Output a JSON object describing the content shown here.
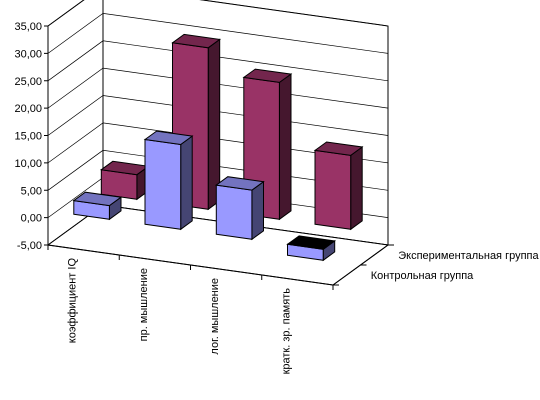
{
  "chart_data": {
    "type": "bar",
    "three_d": true,
    "categories": [
      "коэффициент IQ",
      "пр. мышление",
      "лог. мышление",
      "кратк. зр. память"
    ],
    "series": [
      {
        "name": "Контрольная группа",
        "values": [
          2.5,
          15.5,
          9.0,
          -2.0
        ],
        "color": "#9999ff"
      },
      {
        "name": "Экспериментальная группа",
        "values": [
          4.5,
          29.5,
          25.0,
          13.5
        ],
        "color": "#993366"
      }
    ],
    "ylim": [
      -5,
      35
    ],
    "yticks": [
      "35,00",
      "30,00",
      "25,00",
      "20,00",
      "15,00",
      "10,00",
      "5,00",
      "0,00",
      "-5,00"
    ],
    "grid": true,
    "colors": {
      "kontrol_special_last": "#000000",
      "grid": "#000000",
      "wall": "#ffffff"
    }
  }
}
